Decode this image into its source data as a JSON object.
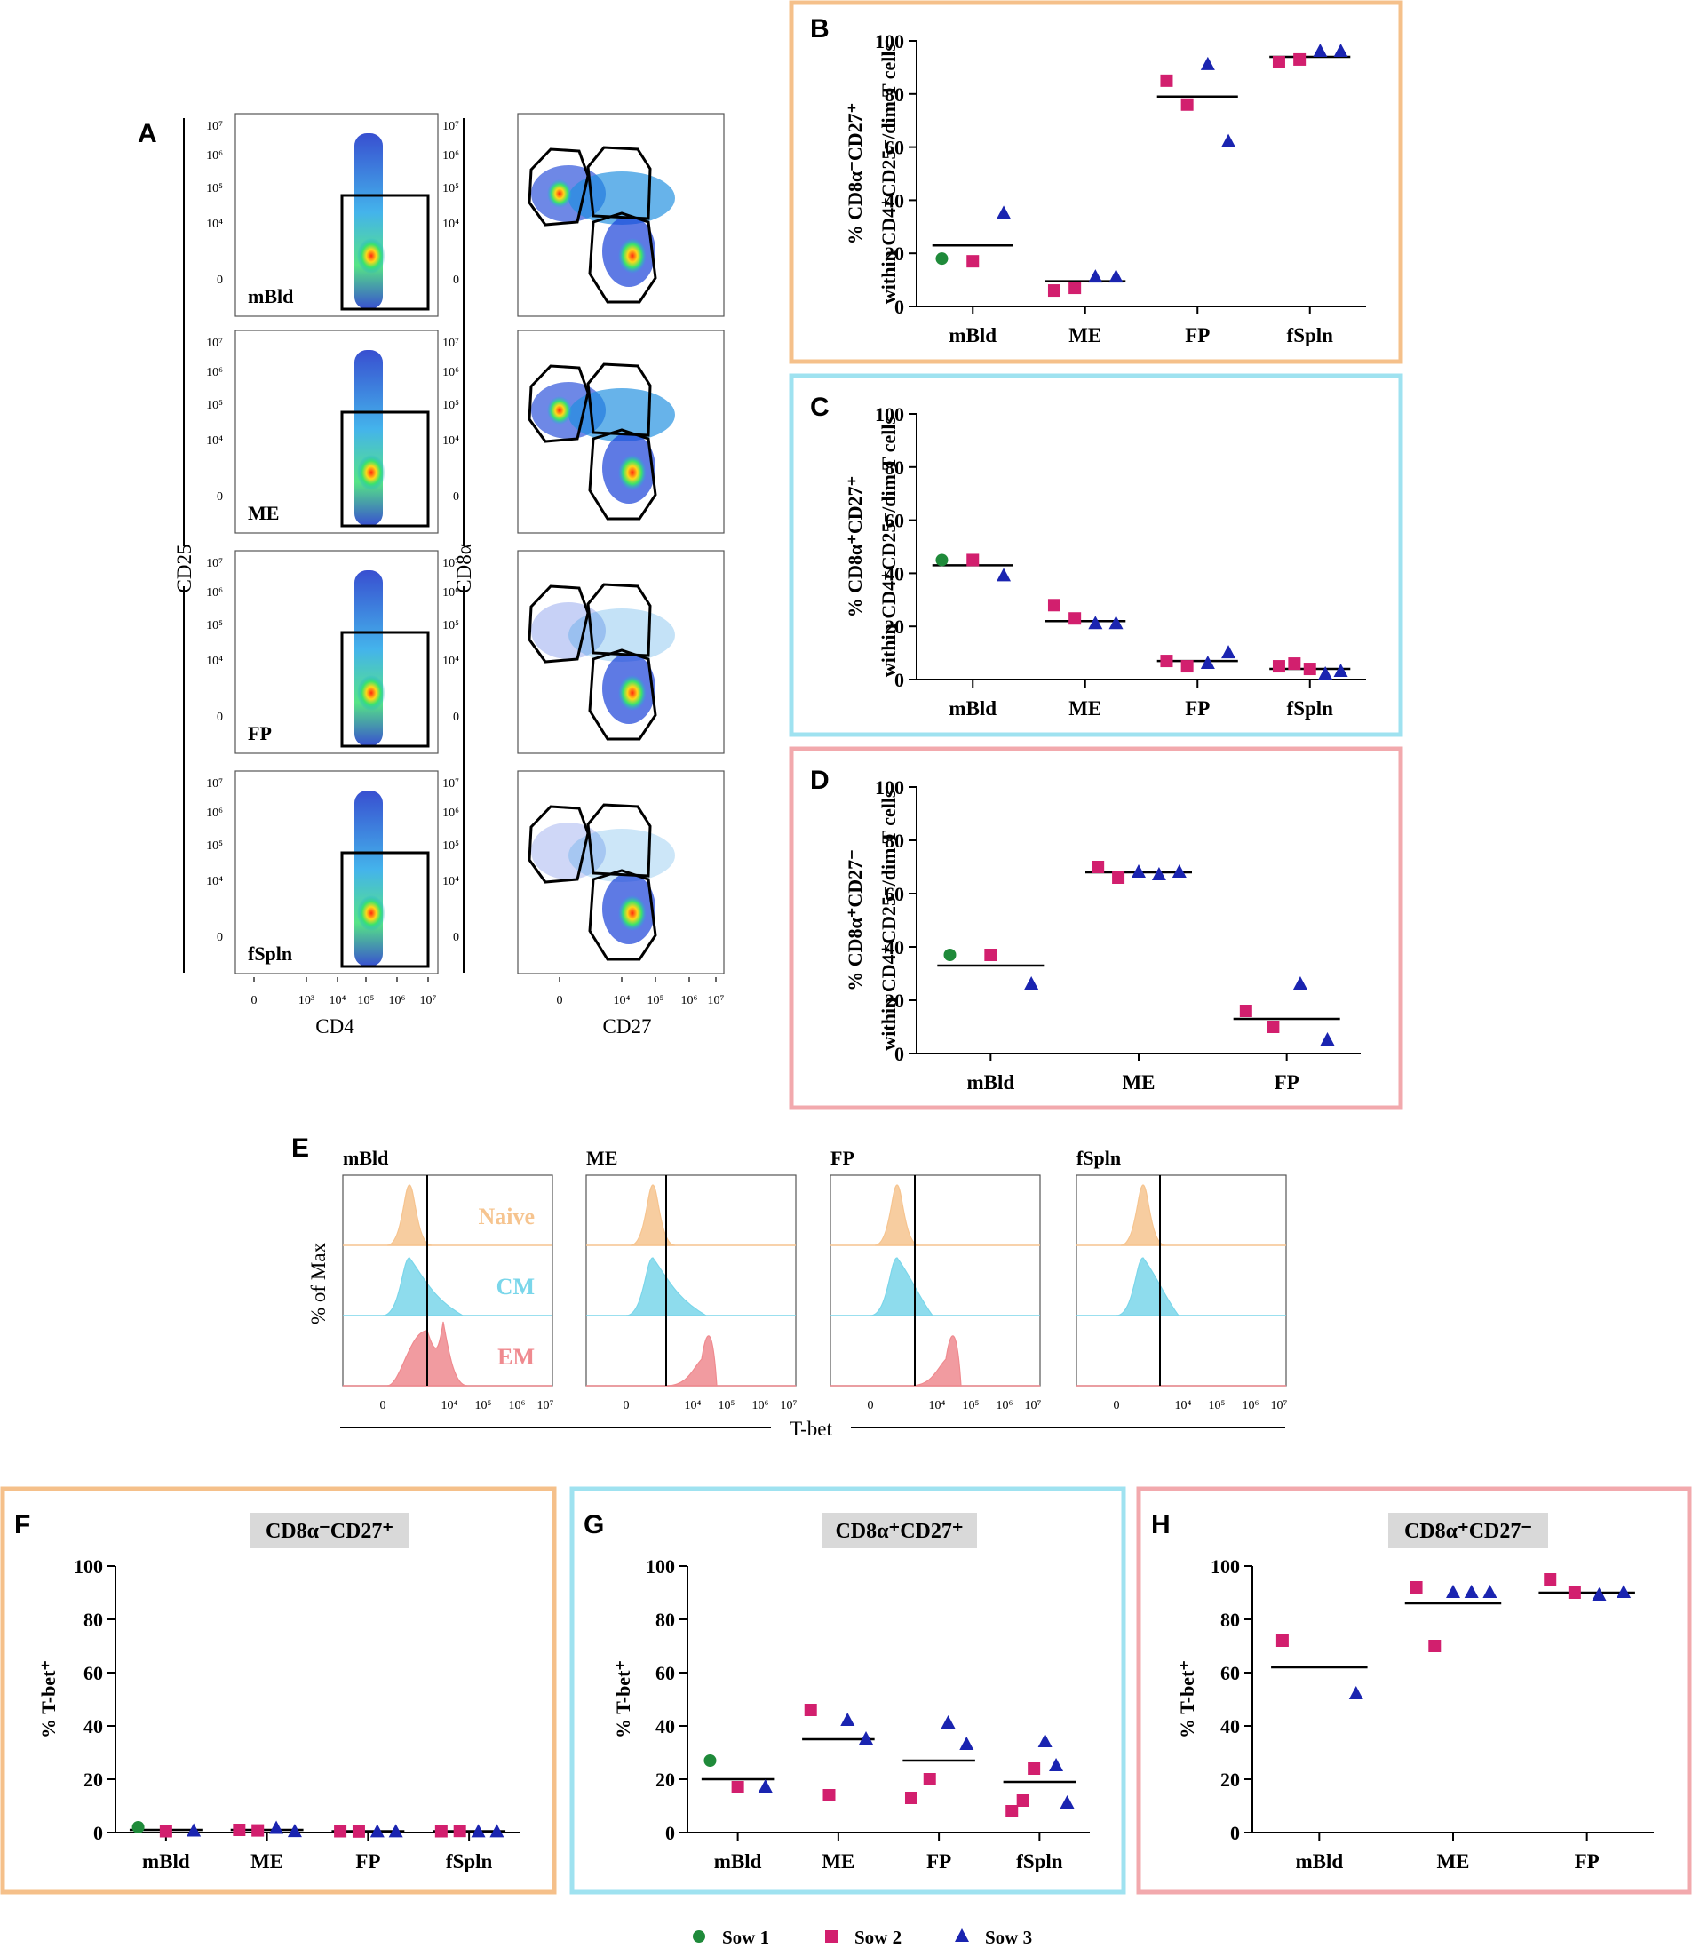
{
  "colors": {
    "sow1": "#1f8a3a",
    "sow2": "#d21f6e",
    "sow3": "#1a24b0",
    "orange_frame": "#f5c08a",
    "blue_frame": "#9fe2f0",
    "pink_frame": "#f2a9ad",
    "naive_fill": "#f6c48f",
    "cm_fill": "#7ad6ea",
    "em_fill": "#ef8a8f"
  },
  "panelA": {
    "label": "A",
    "cd25_axis": "CD25",
    "cd8a_axis": "CD8α",
    "cd4_axis": "CD4",
    "cd27_axis": "CD27",
    "samples": [
      "mBld",
      "ME",
      "FP",
      "fSpln"
    ],
    "y_ticks": [
      "10⁷",
      "10⁶",
      "10⁵",
      "10⁴",
      "0"
    ],
    "x_ticks_left": [
      "0",
      "10³",
      "10⁴",
      "10⁵",
      "10⁶",
      "10⁷"
    ],
    "x_ticks_right": [
      "0",
      "10⁴",
      "10⁵",
      "10⁶",
      "10⁷"
    ]
  },
  "panelE": {
    "label": "E",
    "samples": [
      "mBld",
      "ME",
      "FP",
      "fSpln"
    ],
    "populations": [
      "Naive",
      "CM",
      "EM"
    ],
    "y_axis": "% of Max",
    "x_axis": "T-bet",
    "x_ticks": [
      "0",
      "10⁴",
      "10⁵",
      "10⁶",
      "10⁷"
    ]
  },
  "legend": {
    "items": [
      {
        "name": "Sow 1",
        "shape": "circle"
      },
      {
        "name": "Sow 2",
        "shape": "square"
      },
      {
        "name": "Sow 3",
        "shape": "triangle"
      }
    ]
  },
  "chart_data": [
    {
      "id": "B",
      "label": "B",
      "type": "scatter",
      "title": "",
      "ylabel_line1": "% CD8α⁻CD27⁺",
      "ylabel_line2": "within CD4⁺CD25⁻/dim T cells",
      "ylim": [
        0,
        100
      ],
      "yticks": [
        0,
        20,
        40,
        60,
        80,
        100
      ],
      "categories": [
        "mBld",
        "ME",
        "FP",
        "fSpln"
      ],
      "means": [
        23,
        9.5,
        79,
        94
      ],
      "series": [
        {
          "name": "Sow 1",
          "points": [
            [
              0,
              18
            ]
          ]
        },
        {
          "name": "Sow 2",
          "points": [
            [
              0,
              17
            ],
            [
              1,
              6
            ],
            [
              1,
              7
            ],
            [
              2,
              85
            ],
            [
              2,
              76
            ],
            [
              3,
              92
            ],
            [
              3,
              93
            ]
          ]
        },
        {
          "name": "Sow 3",
          "points": [
            [
              0,
              35
            ],
            [
              1,
              11
            ],
            [
              1,
              11
            ],
            [
              2,
              91
            ],
            [
              2,
              62
            ],
            [
              3,
              96
            ],
            [
              3,
              96
            ]
          ]
        }
      ]
    },
    {
      "id": "C",
      "label": "C",
      "type": "scatter",
      "title": "",
      "ylabel_line1": "% CD8α⁺CD27⁺",
      "ylabel_line2": "within CD4⁺CD25⁻/dim T cells",
      "ylim": [
        0,
        100
      ],
      "yticks": [
        0,
        20,
        40,
        60,
        80,
        100
      ],
      "categories": [
        "mBld",
        "ME",
        "FP",
        "fSpln"
      ],
      "means": [
        43,
        22,
        7,
        4
      ],
      "series": [
        {
          "name": "Sow 1",
          "points": [
            [
              0,
              45
            ]
          ]
        },
        {
          "name": "Sow 2",
          "points": [
            [
              0,
              45
            ],
            [
              1,
              28
            ],
            [
              1,
              23
            ],
            [
              2,
              7
            ],
            [
              2,
              5
            ],
            [
              3,
              5
            ],
            [
              3,
              6
            ],
            [
              3,
              4
            ]
          ]
        },
        {
          "name": "Sow 3",
          "points": [
            [
              0,
              39
            ],
            [
              1,
              21
            ],
            [
              1,
              21
            ],
            [
              2,
              6
            ],
            [
              2,
              10
            ],
            [
              3,
              2
            ],
            [
              3,
              3
            ]
          ]
        }
      ]
    },
    {
      "id": "D",
      "label": "D",
      "type": "scatter",
      "title": "",
      "ylabel_line1": "% CD8α⁺CD27⁻",
      "ylabel_line2": "within CD4⁺CD25⁻/dim T cells",
      "ylim": [
        0,
        100
      ],
      "yticks": [
        0,
        20,
        40,
        60,
        80,
        100
      ],
      "categories": [
        "mBld",
        "ME",
        "FP"
      ],
      "means": [
        33,
        68,
        13
      ],
      "series": [
        {
          "name": "Sow 1",
          "points": [
            [
              0,
              37
            ]
          ]
        },
        {
          "name": "Sow 2",
          "points": [
            [
              0,
              37
            ],
            [
              1,
              70
            ],
            [
              1,
              66
            ],
            [
              2,
              16
            ],
            [
              2,
              10
            ]
          ]
        },
        {
          "name": "Sow 3",
          "points": [
            [
              0,
              26
            ],
            [
              1,
              68
            ],
            [
              1,
              67
            ],
            [
              1,
              68
            ],
            [
              2,
              26
            ],
            [
              2,
              5
            ]
          ]
        }
      ]
    },
    {
      "id": "F",
      "label": "F",
      "type": "scatter",
      "title": "CD8α⁻CD27⁺",
      "ylabel_line1": "% T-bet⁺",
      "ylabel_line2": "",
      "ylim": [
        0,
        100
      ],
      "yticks": [
        0,
        20,
        40,
        60,
        80,
        100
      ],
      "categories": [
        "mBld",
        "ME",
        "FP",
        "fSpln"
      ],
      "means": [
        1,
        1,
        0.5,
        0.5
      ],
      "series": [
        {
          "name": "Sow 1",
          "points": [
            [
              0,
              2
            ]
          ]
        },
        {
          "name": "Sow 2",
          "points": [
            [
              0,
              0.5
            ],
            [
              1,
              1
            ],
            [
              1,
              0.8
            ],
            [
              2,
              0.5
            ],
            [
              2,
              0.4
            ],
            [
              3,
              0.5
            ],
            [
              3,
              0.6
            ]
          ]
        },
        {
          "name": "Sow 3",
          "points": [
            [
              0,
              0.5
            ],
            [
              1,
              1.5
            ],
            [
              1,
              0.3
            ],
            [
              2,
              0.2
            ],
            [
              2,
              0.2
            ],
            [
              3,
              0.2
            ],
            [
              3,
              0.2
            ]
          ]
        }
      ]
    },
    {
      "id": "G",
      "label": "G",
      "type": "scatter",
      "title": "CD8α⁺CD27⁺",
      "ylabel_line1": "% T-bet⁺",
      "ylabel_line2": "",
      "ylim": [
        0,
        100
      ],
      "yticks": [
        0,
        20,
        40,
        60,
        80,
        100
      ],
      "categories": [
        "mBld",
        "ME",
        "FP",
        "fSpln"
      ],
      "means": [
        20,
        35,
        27,
        19
      ],
      "series": [
        {
          "name": "Sow 1",
          "points": [
            [
              0,
              27
            ]
          ]
        },
        {
          "name": "Sow 2",
          "points": [
            [
              0,
              17
            ],
            [
              1,
              46
            ],
            [
              1,
              14
            ],
            [
              2,
              13
            ],
            [
              2,
              20
            ],
            [
              3,
              8
            ],
            [
              3,
              12
            ],
            [
              3,
              24
            ]
          ]
        },
        {
          "name": "Sow 3",
          "points": [
            [
              0,
              17
            ],
            [
              1,
              42
            ],
            [
              1,
              35
            ],
            [
              2,
              41
            ],
            [
              2,
              33
            ],
            [
              3,
              34
            ],
            [
              3,
              25
            ],
            [
              3,
              11
            ]
          ]
        }
      ]
    },
    {
      "id": "H",
      "label": "H",
      "type": "scatter",
      "title": "CD8α⁺CD27⁻",
      "ylabel_line1": "% T-bet⁺",
      "ylabel_line2": "",
      "ylim": [
        0,
        100
      ],
      "yticks": [
        0,
        20,
        40,
        60,
        80,
        100
      ],
      "categories": [
        "mBld",
        "ME",
        "FP"
      ],
      "means": [
        62,
        86,
        90
      ],
      "series": [
        {
          "name": "Sow 2",
          "points": [
            [
              0,
              72
            ],
            [
              1,
              92
            ],
            [
              1,
              70
            ],
            [
              2,
              95
            ],
            [
              2,
              90
            ]
          ]
        },
        {
          "name": "Sow 3",
          "points": [
            [
              0,
              52
            ],
            [
              1,
              90
            ],
            [
              1,
              90
            ],
            [
              1,
              90
            ],
            [
              2,
              89
            ],
            [
              2,
              90
            ]
          ]
        }
      ]
    }
  ]
}
